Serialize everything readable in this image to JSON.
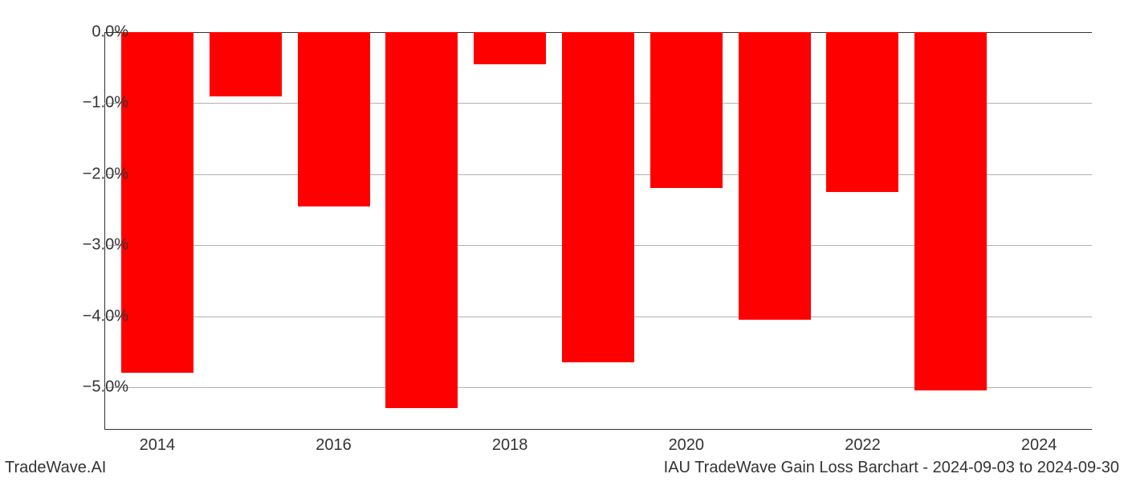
{
  "chart": {
    "type": "bar",
    "years": [
      2014,
      2015,
      2016,
      2017,
      2018,
      2019,
      2020,
      2021,
      2022,
      2023
    ],
    "values": [
      -4.8,
      -0.9,
      -2.45,
      -5.3,
      -0.45,
      -4.65,
      -2.2,
      -4.05,
      -2.25,
      -5.05
    ],
    "bar_color": "#ff0000",
    "background_color": "#ffffff",
    "grid_color": "#b0b0b0",
    "axis_color": "#333333",
    "ylim": [
      -5.6,
      0
    ],
    "ytick_values": [
      0,
      -1,
      -2,
      -3,
      -4,
      -5
    ],
    "ytick_labels": [
      "0.0%",
      "−1.0%",
      "−2.0%",
      "−3.0%",
      "−4.0%",
      "−5.0%"
    ],
    "xtick_years": [
      2014,
      2016,
      2018,
      2020,
      2022,
      2024
    ],
    "xtick_labels": [
      "2014",
      "2016",
      "2018",
      "2020",
      "2022",
      "2024"
    ],
    "bar_width_ratio": 0.82,
    "label_fontsize": 20,
    "footer_fontsize": 20
  },
  "footer": {
    "left": "TradeWave.AI",
    "right": "IAU TradeWave Gain Loss Barchart - 2024-09-03 to 2024-09-30"
  }
}
